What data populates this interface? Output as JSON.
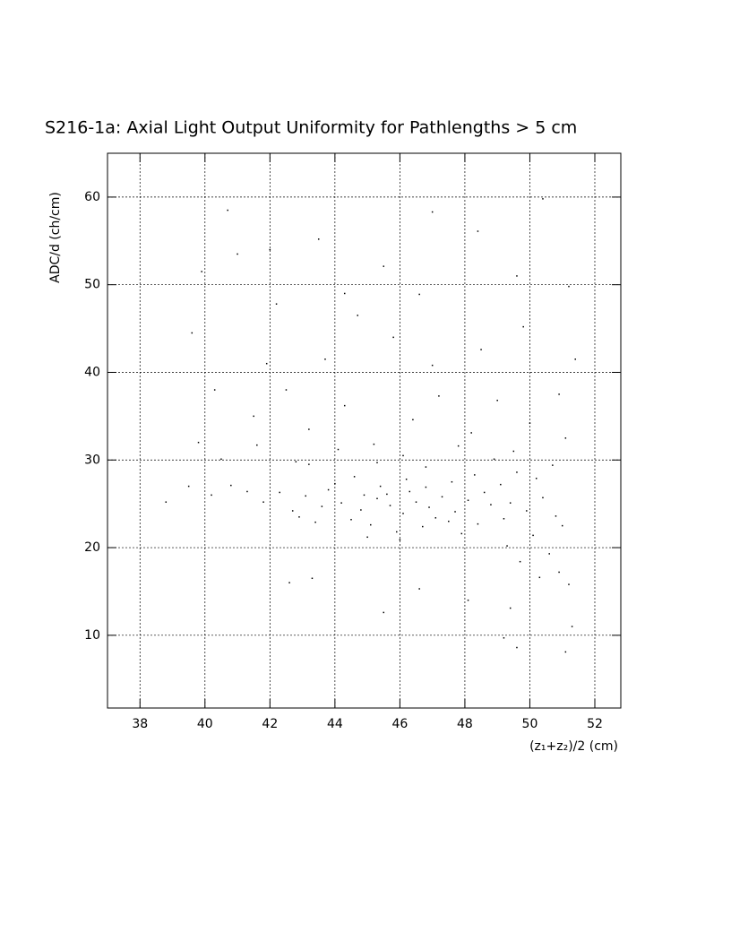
{
  "chart_data": {
    "type": "scatter",
    "title": "S216-1a: Axial Light Output Uniformity for Pathlengths > 5 cm",
    "x_label": "(z₁+z₂)/2 (cm)",
    "y_label": "ADC/d (ch/cm)",
    "color": "#000000",
    "grid": true,
    "xlim": [
      37,
      52.8
    ],
    "ylim": [
      1.7,
      65
    ],
    "xticks": [
      38,
      40,
      42,
      44,
      46,
      48,
      50,
      52
    ],
    "yticks": [
      10,
      20,
      30,
      40,
      50,
      60
    ],
    "x": [
      44.2,
      44.8,
      45.3,
      45.7,
      46.1,
      46.5,
      46.9,
      47.3,
      47.7,
      48.1,
      43.6,
      43.1,
      42.7,
      42.3,
      44.5,
      45.1,
      45.9,
      46.7,
      47.5,
      48.4,
      44.0,
      44.6,
      45.4,
      46.2,
      46.8,
      47.6,
      48.3,
      49.1,
      49.6,
      50.2,
      49.4,
      49.9,
      50.4,
      50.8,
      48.8,
      43.4,
      42.9,
      41.8,
      41.3,
      40.8,
      45.6,
      46.3,
      44.9,
      47.1,
      43.8,
      48.6,
      49.2,
      46.0,
      45.0,
      47.9,
      50.1,
      50.6,
      50.9,
      51.2,
      50.3,
      49.7,
      49.3,
      51.0,
      50.7,
      48.9,
      39.5,
      38.8,
      40.2,
      39.8,
      41.5,
      42.5,
      43.2,
      44.3,
      45.2,
      46.4,
      47.2,
      48.2,
      49.0,
      50.0,
      50.9,
      51.1,
      43.7,
      45.8,
      47.0,
      48.5,
      49.8,
      42.2,
      44.7,
      46.6,
      49.6,
      51.2,
      41.0,
      42.0,
      43.5,
      45.5,
      47.0,
      48.4,
      50.4,
      40.7,
      44.3,
      41.9,
      40.3,
      39.6,
      39.9,
      51.4,
      46.1,
      44.1,
      42.8,
      47.8,
      49.5,
      41.6,
      40.5,
      46.8,
      45.3,
      43.2,
      42.6,
      43.3,
      45.5,
      46.6,
      48.1,
      49.4,
      49.2,
      49.6,
      51.1,
      51.3
    ],
    "y": [
      25.1,
      24.3,
      25.6,
      24.8,
      23.9,
      25.2,
      24.6,
      25.8,
      24.1,
      25.4,
      24.7,
      25.9,
      24.2,
      26.3,
      23.2,
      22.6,
      21.8,
      22.4,
      23.0,
      22.7,
      27.3,
      28.1,
      27.0,
      27.8,
      26.9,
      27.5,
      28.3,
      27.2,
      28.6,
      27.9,
      25.1,
      24.2,
      25.7,
      23.6,
      24.9,
      22.9,
      23.5,
      25.2,
      26.4,
      27.1,
      26.1,
      26.4,
      26.0,
      23.4,
      26.6,
      26.3,
      23.3,
      20.9,
      21.2,
      21.6,
      21.4,
      19.3,
      17.2,
      15.8,
      16.6,
      18.4,
      20.2,
      22.5,
      29.4,
      30.1,
      27.0,
      25.2,
      26.0,
      32.0,
      35.0,
      38.0,
      33.5,
      36.2,
      31.8,
      34.6,
      37.3,
      33.1,
      36.8,
      34.2,
      37.5,
      32.5,
      41.5,
      44.0,
      40.8,
      42.6,
      45.2,
      47.8,
      46.5,
      48.9,
      51.0,
      49.8,
      53.5,
      54.0,
      55.2,
      52.1,
      58.3,
      56.1,
      59.8,
      58.5,
      49.0,
      41.0,
      38.0,
      44.5,
      51.5,
      41.5,
      30.5,
      31.2,
      29.8,
      31.6,
      31.0,
      31.7,
      30.1,
      29.2,
      29.7,
      29.5,
      16.0,
      16.5,
      12.6,
      15.3,
      14.0,
      13.1,
      9.7,
      8.6,
      8.1,
      11.0
    ]
  }
}
